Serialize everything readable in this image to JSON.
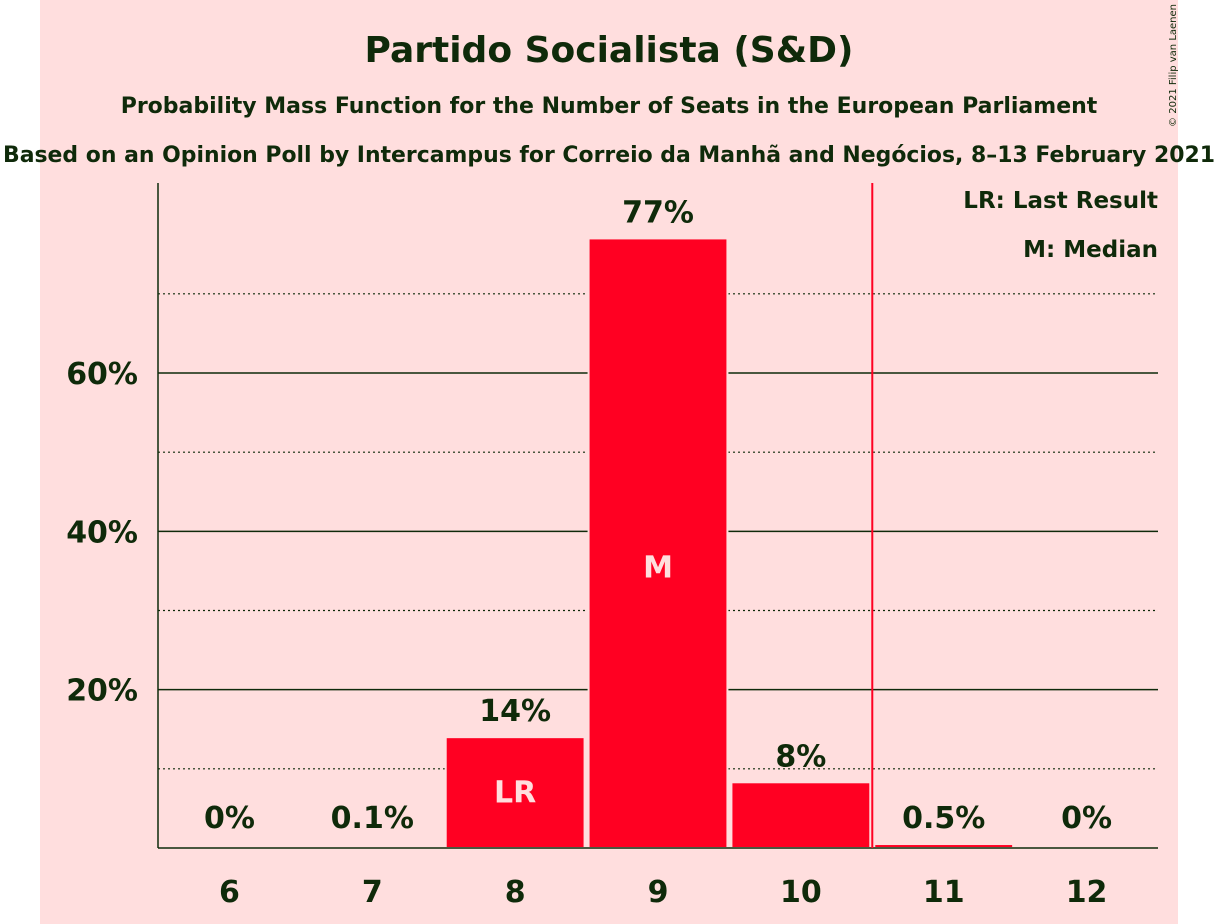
{
  "title": "Partido Socialista (S&D)",
  "subtitle": "Probability Mass Function for the Number of Seats in the European Parliament",
  "source": "Based on an Opinion Poll by Intercampus for Correio da Manhã and Negócios, 8–13 February 2021",
  "copyright": "© 2021 Filip van Laenen",
  "legend": {
    "last_result": "LR: Last Result",
    "median": "M: Median"
  },
  "colors": {
    "bar": "#ff0022",
    "background": "#ffdede",
    "text": "#0f2a0a",
    "last_result_line": "#ff0022"
  },
  "chart_data": {
    "type": "bar",
    "categories": [
      "6",
      "7",
      "8",
      "9",
      "10",
      "11",
      "12"
    ],
    "values": [
      0,
      0.1,
      14,
      77,
      8.3,
      0.5,
      0
    ],
    "value_labels": [
      "0%",
      "0.1%",
      "14%",
      "77%",
      "8%",
      "0.5%",
      "0%"
    ],
    "inside_labels": [
      "",
      "",
      "LR",
      "M",
      "",
      "",
      ""
    ],
    "ylim": [
      0,
      84
    ],
    "yticks": [
      20,
      40,
      60
    ],
    "ytick_labels": [
      "20%",
      "40%",
      "60%"
    ],
    "minor_gridlines": [
      10,
      30,
      50,
      70
    ],
    "last_result_line_after": "10",
    "grid": true,
    "legend_position": "top-right"
  }
}
